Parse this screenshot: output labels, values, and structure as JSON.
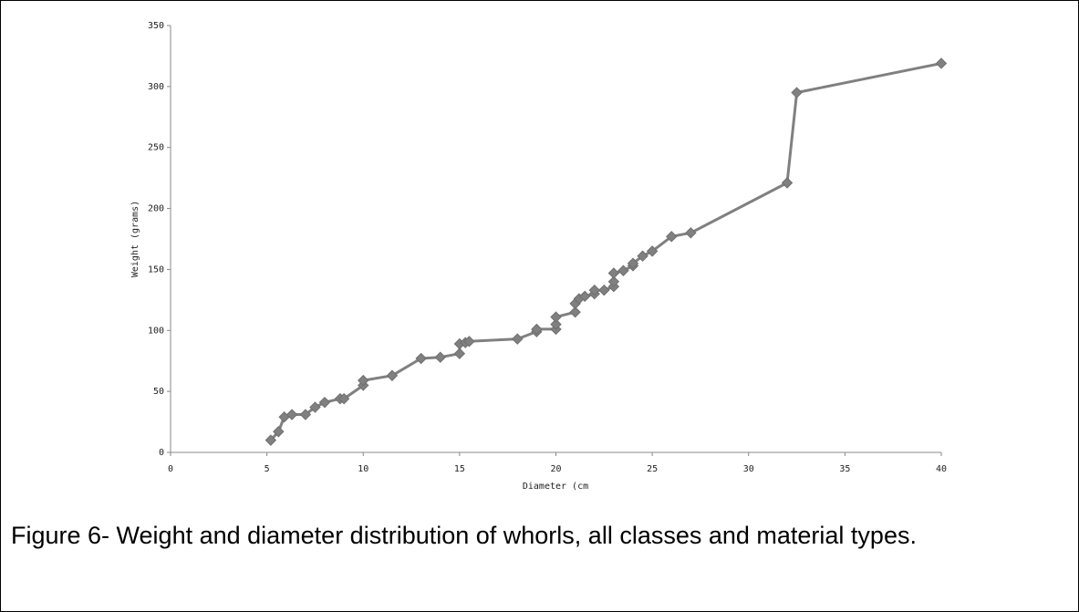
{
  "caption": "Figure 6- Weight and diameter distribution of whorls, all classes and material  types.",
  "colors": {
    "series": "#808080",
    "axis": "#888888",
    "frame": "#000000"
  },
  "chart_data": {
    "type": "line",
    "title": "",
    "xlabel": "Diameter (cm",
    "ylabel": "Weight (grams)",
    "xlim": [
      0,
      40
    ],
    "ylim": [
      0,
      350
    ],
    "xticks": [
      0,
      5,
      10,
      15,
      20,
      25,
      30,
      35,
      40
    ],
    "yticks": [
      0,
      50,
      100,
      150,
      200,
      250,
      300,
      350
    ],
    "grid": false,
    "legend": "none",
    "marker": "diamond",
    "series": [
      {
        "x": [
          5.2,
          5.6,
          5.9,
          6.3,
          7.0,
          7.5,
          8.0,
          8.8,
          9.0,
          10.0,
          10.0,
          11.5,
          13.0,
          14.0,
          15.0,
          15.0,
          15.3,
          15.5,
          18.0,
          19.0,
          19.0,
          20.0,
          20.0,
          20.0,
          21.0,
          21.0,
          21.2,
          21.5,
          22.0,
          22.0,
          22.5,
          23.0,
          23.0,
          23.0,
          23.5,
          24.0,
          24.0,
          24.5,
          25.0,
          26.0,
          27.0,
          32.0,
          32.5,
          40.0
        ],
        "y": [
          10,
          17,
          29,
          31,
          31,
          37,
          41,
          44,
          44,
          55,
          59,
          63,
          77,
          78,
          81,
          89,
          90,
          91,
          93,
          99,
          101,
          101,
          105,
          111,
          115,
          122,
          126,
          128,
          130,
          133,
          133,
          136,
          140,
          147,
          149,
          153,
          155,
          161,
          165,
          177,
          180,
          221,
          295,
          319
        ]
      }
    ]
  }
}
